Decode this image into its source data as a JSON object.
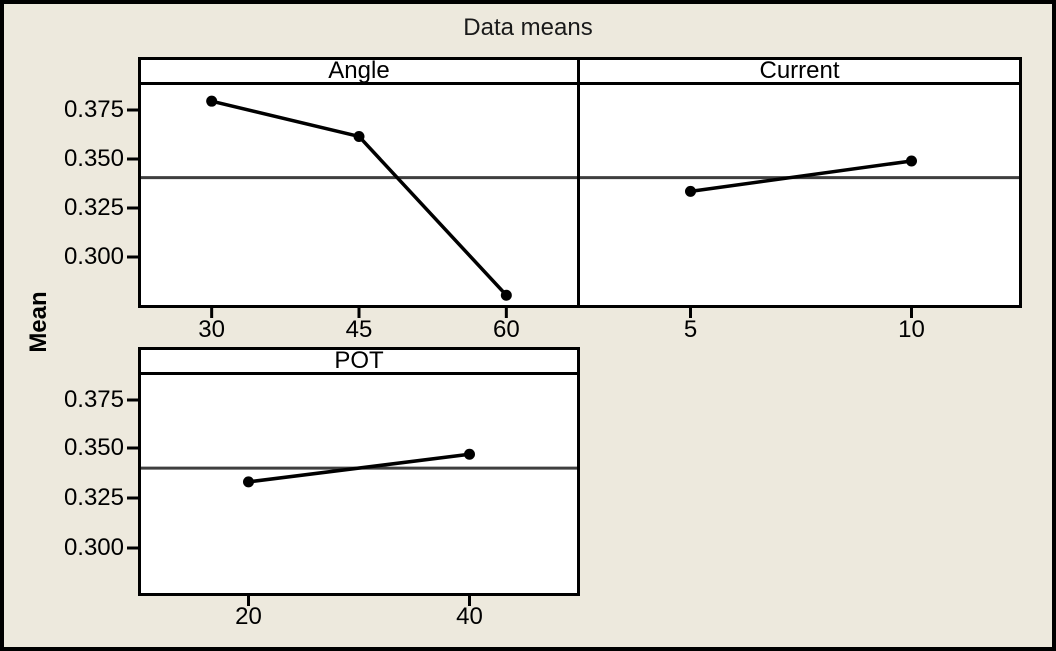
{
  "figure": {
    "title": "Data means",
    "ylabel": "Mean",
    "colors": {
      "background": "#EDE9DD",
      "panel_background": "#FFFFFF",
      "border": "#000000",
      "series_line": "#000000",
      "marker": "#000000",
      "grand_mean_line": "#3F3F3F",
      "text": "#000000"
    }
  },
  "chart_data": {
    "type": "line",
    "title": "Data means",
    "ylabel": "Mean",
    "layout_hint": "three faceted main-effects panels, 2 on top row (shared y axis), 1 on bottom row; horizontal grand-mean reference line in each panel; no gridlines; no legend",
    "yticks": [
      0.375,
      0.35,
      0.325,
      0.3
    ],
    "ytick_labels": [
      "0.375",
      "0.350",
      "0.325",
      "0.300"
    ],
    "ylim": [
      0.274,
      0.387
    ],
    "grand_mean": 0.3405,
    "panels": [
      {
        "name": "Angle",
        "categories": [
          "30",
          "45",
          "60"
        ],
        "values": [
          0.3795,
          0.3615,
          0.2805
        ]
      },
      {
        "name": "Current",
        "categories": [
          "5",
          "10"
        ],
        "values": [
          0.3335,
          0.349
        ]
      },
      {
        "name": "POT",
        "categories": [
          "20",
          "40"
        ],
        "values": [
          0.3335,
          0.3475
        ]
      }
    ]
  }
}
